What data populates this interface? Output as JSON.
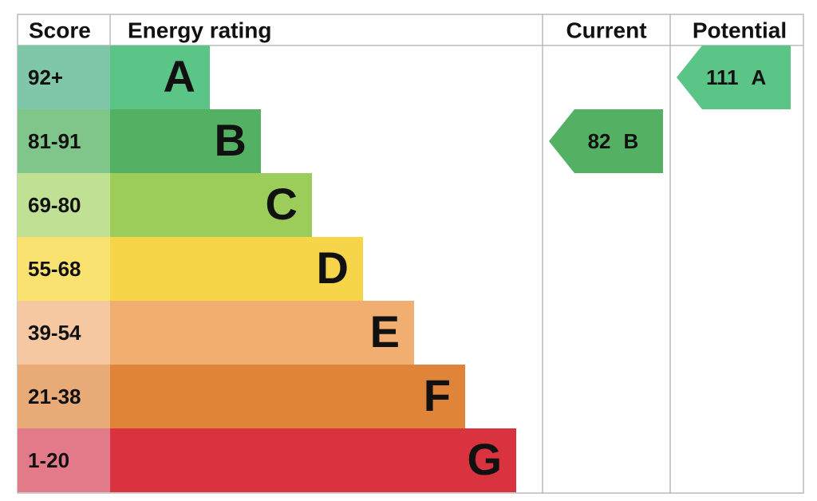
{
  "headers": {
    "score": "Score",
    "rating": "Energy rating",
    "current": "Current",
    "potential": "Potential"
  },
  "bands": [
    {
      "score": "92+",
      "letter": "A",
      "color": "#5bc587",
      "light": "#80c6a9"
    },
    {
      "score": "81-91",
      "letter": "B",
      "color": "#54b063",
      "light": "#80c68a"
    },
    {
      "score": "69-80",
      "letter": "C",
      "color": "#9ccd5a",
      "light": "#c0e094"
    },
    {
      "score": "55-68",
      "letter": "D",
      "color": "#f7d54a",
      "light": "#f9e270"
    },
    {
      "score": "39-54",
      "letter": "E",
      "color": "#f0ae70",
      "light": "#f5c8a2"
    },
    {
      "score": "21-38",
      "letter": "F",
      "color": "#e0843a",
      "light": "#e8ab78"
    },
    {
      "score": "1-20",
      "letter": "G",
      "color": "#d9333f",
      "light": "#e37a8a"
    }
  ],
  "current": {
    "value": 82,
    "letter": "B",
    "color": "#54b063"
  },
  "potential": {
    "value": 111,
    "letter": "A",
    "color": "#5bc587"
  }
}
